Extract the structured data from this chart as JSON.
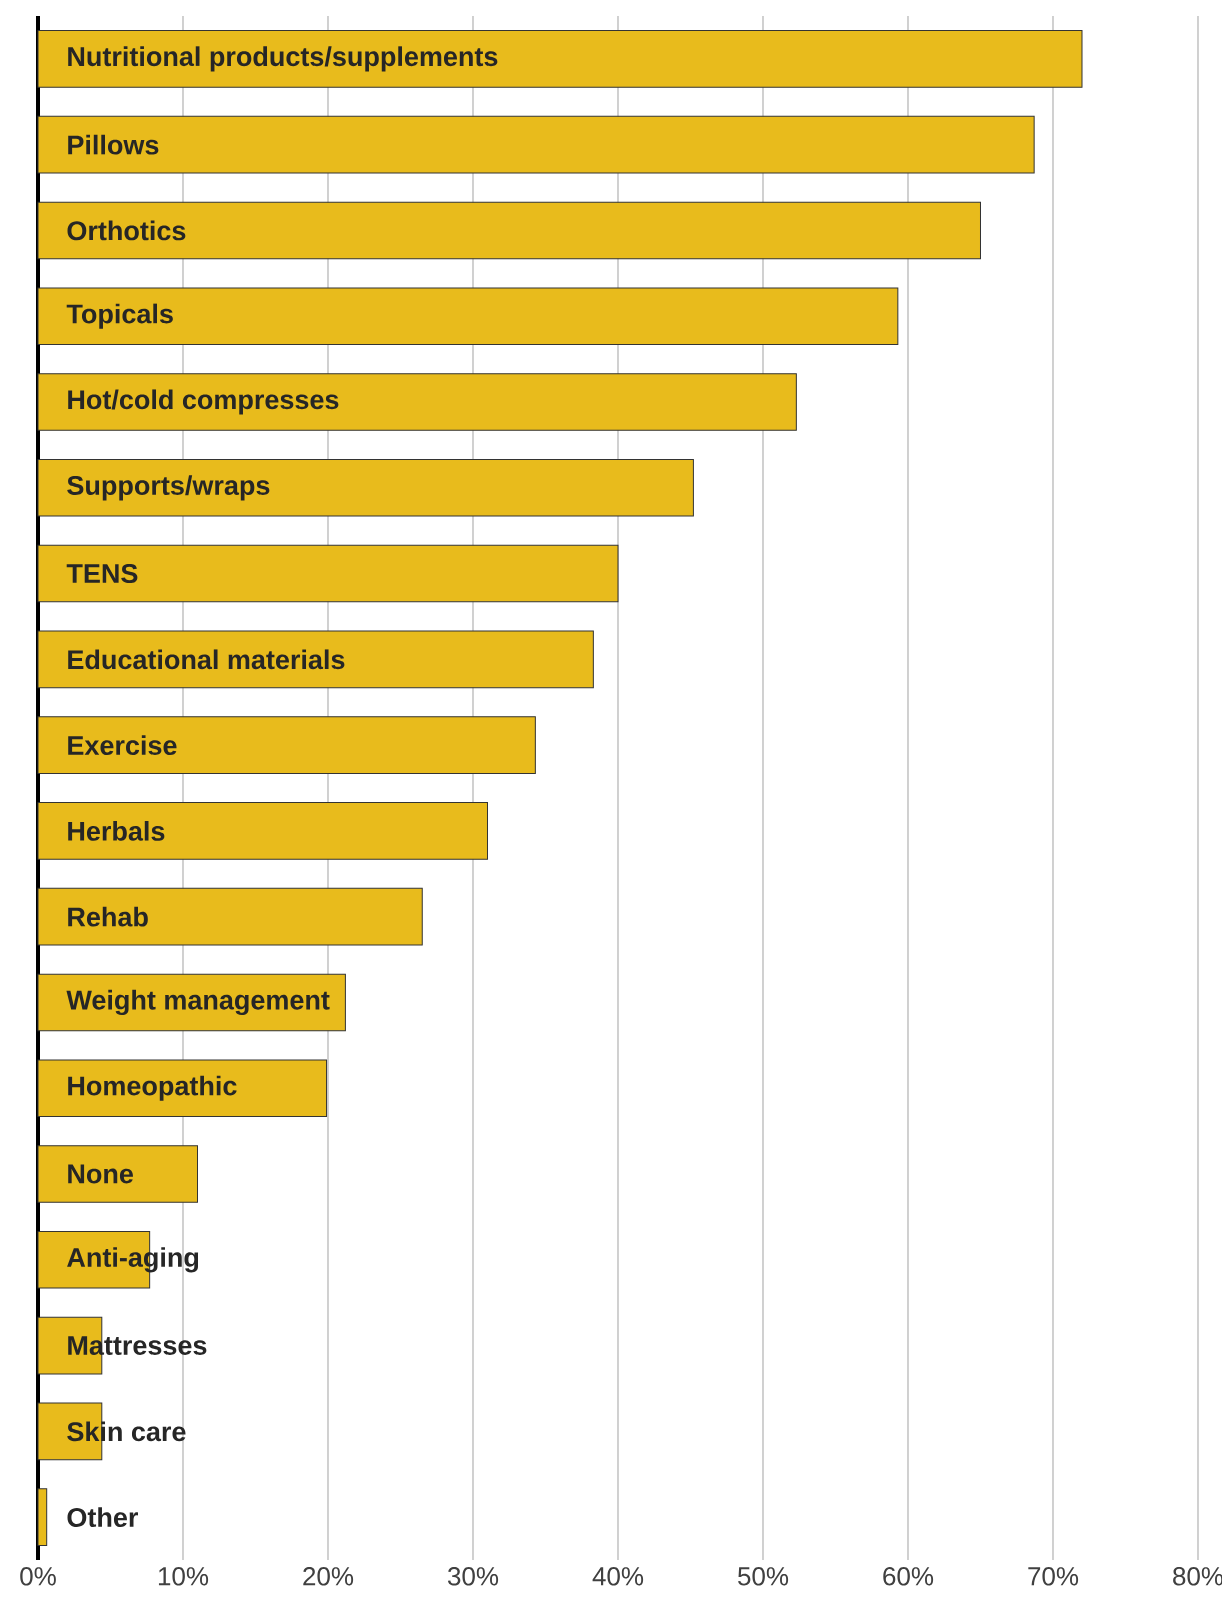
{
  "chart_data": {
    "type": "bar",
    "orientation": "horizontal",
    "categories": [
      "Nutritional products/supplements",
      "Pillows",
      "Orthotics",
      "Topicals",
      "Hot/cold compresses",
      "Supports/wraps",
      "TENS",
      "Educational materials",
      "Exercise",
      "Herbals",
      "Rehab",
      "Weight management",
      "Homeopathic",
      "None",
      "Anti-aging",
      "Mattresses",
      "Skin care",
      "Other"
    ],
    "values": [
      72.0,
      68.7,
      65.0,
      59.3,
      52.3,
      45.2,
      40.0,
      38.3,
      34.3,
      31.0,
      26.5,
      21.2,
      19.9,
      11.0,
      7.7,
      4.4,
      4.4,
      0.6
    ],
    "color": "#e8bb1c",
    "xlim": [
      0,
      80
    ],
    "xticks": [
      {
        "value": 0,
        "label": "0%"
      },
      {
        "value": 10,
        "label": "10%"
      },
      {
        "value": 20,
        "label": "20%"
      },
      {
        "value": 30,
        "label": "30%"
      },
      {
        "value": 40,
        "label": "40%"
      },
      {
        "value": 50,
        "label": "50%"
      },
      {
        "value": 60,
        "label": "60%"
      },
      {
        "value": 70,
        "label": "70%"
      },
      {
        "value": 80,
        "label": "80%"
      }
    ],
    "grid": "x",
    "tick_labels": "x"
  }
}
